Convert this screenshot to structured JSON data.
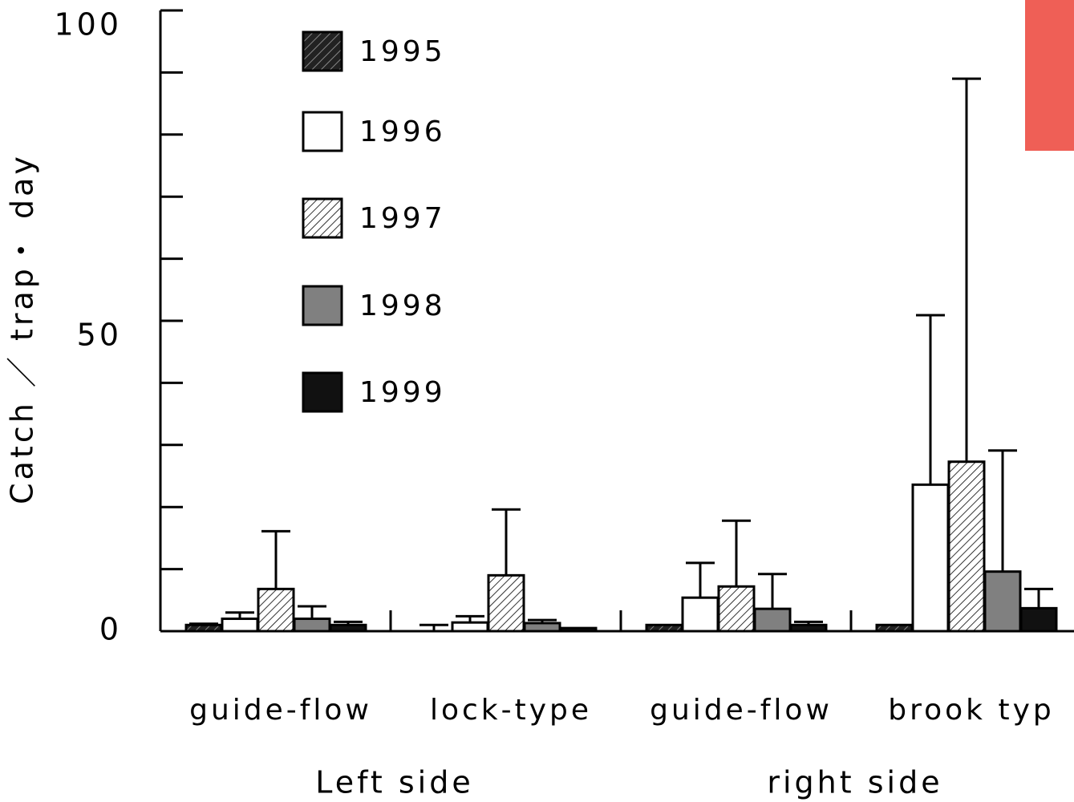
{
  "chart_data": {
    "type": "bar",
    "ylabel": "Catch ／ trap・ day",
    "categories": [
      "guide-flow",
      "lock-type",
      "guide-flow",
      "brook typ"
    ],
    "groups": [
      "Left side",
      "right side"
    ],
    "series": [
      {
        "name": "1995",
        "color": "#1a1a1a",
        "hatch": true,
        "values": [
          1,
          0,
          1,
          1
        ],
        "errors": [
          0.2,
          1,
          0,
          0
        ]
      },
      {
        "name": "1996",
        "color": "#ffffff",
        "hatch": false,
        "values": [
          2,
          1.4,
          5.4,
          23.6
        ],
        "errors": [
          1,
          1,
          5.6,
          27.3
        ]
      },
      {
        "name": "1997",
        "color": "#ffffff",
        "hatch": true,
        "values": [
          6.8,
          9,
          7.2,
          27.3
        ],
        "errors": [
          9.3,
          10.6,
          10.6,
          61.7
        ]
      },
      {
        "name": "1998",
        "color": "#808080",
        "hatch": false,
        "values": [
          2,
          1.3,
          3.6,
          9.6
        ],
        "errors": [
          2,
          0.5,
          5.6,
          19.5
        ]
      },
      {
        "name": "1999",
        "color": "#111111",
        "hatch": false,
        "values": [
          1,
          0.5,
          1,
          3.7
        ],
        "errors": [
          0.5,
          0,
          0.5,
          3.1
        ]
      }
    ],
    "ylim": [
      0,
      100
    ],
    "yticks": [
      0,
      50,
      100
    ],
    "yminorticks": [
      10,
      20,
      30,
      40,
      60,
      70,
      80,
      90
    ]
  }
}
